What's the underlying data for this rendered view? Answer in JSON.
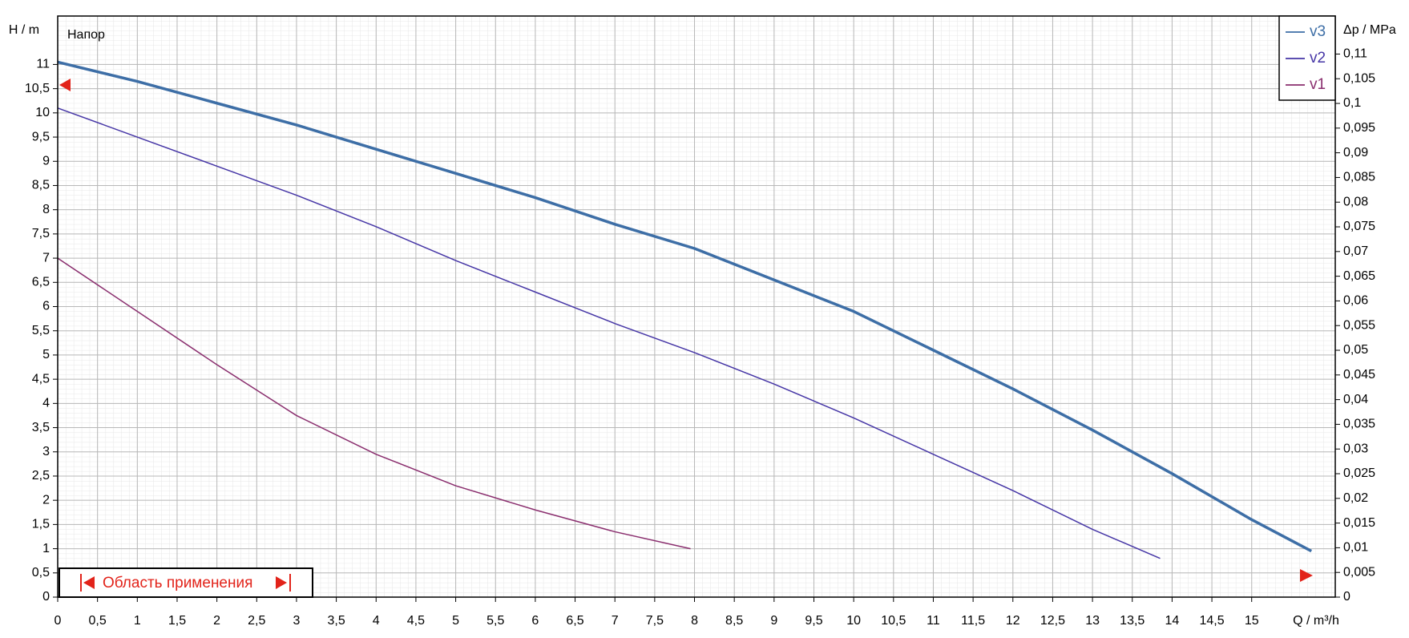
{
  "chart_data": {
    "type": "line",
    "title": "Напор",
    "y_label": "H / m",
    "y2_label": "Δp / MPa",
    "x_label": "Q / m³/h",
    "range_label": "Область применения",
    "legend": "top-right",
    "grid": true,
    "xlim": [
      0,
      16.05
    ],
    "ylim": [
      0,
      12
    ],
    "y2lim": [
      0,
      0.1177
    ],
    "xticks": [
      0,
      {
        "value": 0.5,
        "label": "0,5"
      },
      1,
      {
        "value": 1.5,
        "label": "1,5"
      },
      2,
      {
        "value": 2.5,
        "label": "2,5"
      },
      3,
      {
        "value": 3.5,
        "label": "3,5"
      },
      4,
      {
        "value": 4.5,
        "label": "4,5"
      },
      5,
      {
        "value": 5.5,
        "label": "5,5"
      },
      6,
      {
        "value": 6.5,
        "label": "6,5"
      },
      7,
      {
        "value": 7.5,
        "label": "7,5"
      },
      8,
      {
        "value": 8.5,
        "label": "8,5"
      },
      9,
      {
        "value": 9.5,
        "label": "9,5"
      },
      10,
      {
        "value": 10.5,
        "label": "10,5"
      },
      11,
      {
        "value": 11.5,
        "label": "11,5"
      },
      12,
      {
        "value": 12.5,
        "label": "12,5"
      },
      13,
      {
        "value": 13.5,
        "label": "13,5"
      },
      14,
      {
        "value": 14.5,
        "label": "14,5"
      },
      15
    ],
    "yticks": [
      0,
      {
        "value": 0.5,
        "label": "0,5"
      },
      1,
      {
        "value": 1.5,
        "label": "1,5"
      },
      2,
      {
        "value": 2.5,
        "label": "2,5"
      },
      3,
      {
        "value": 3.5,
        "label": "3,5"
      },
      4,
      {
        "value": 4.5,
        "label": "4,5"
      },
      5,
      {
        "value": 5.5,
        "label": "5,5"
      },
      6,
      {
        "value": 6.5,
        "label": "6,5"
      },
      7,
      {
        "value": 7.5,
        "label": "7,5"
      },
      8,
      {
        "value": 8.5,
        "label": "8,5"
      },
      9,
      {
        "value": 9.5,
        "label": "9,5"
      },
      10,
      {
        "value": 10.5,
        "label": "10,5"
      },
      11
    ],
    "y2ticks": [
      0,
      {
        "value": 0.005,
        "label": "0,005"
      },
      {
        "value": 0.01,
        "label": "0,01"
      },
      {
        "value": 0.015,
        "label": "0,015"
      },
      {
        "value": 0.02,
        "label": "0,02"
      },
      {
        "value": 0.025,
        "label": "0,025"
      },
      {
        "value": 0.03,
        "label": "0,03"
      },
      {
        "value": 0.035,
        "label": "0,035"
      },
      {
        "value": 0.04,
        "label": "0,04"
      },
      {
        "value": 0.045,
        "label": "0,045"
      },
      {
        "value": 0.05,
        "label": "0,05"
      },
      {
        "value": 0.055,
        "label": "0,055"
      },
      {
        "value": 0.06,
        "label": "0,06"
      },
      {
        "value": 0.065,
        "label": "0,065"
      },
      {
        "value": 0.07,
        "label": "0,07"
      },
      {
        "value": 0.075,
        "label": "0,075"
      },
      {
        "value": 0.08,
        "label": "0,08"
      },
      {
        "value": 0.085,
        "label": "0,085"
      },
      {
        "value": 0.09,
        "label": "0,09"
      },
      {
        "value": 0.095,
        "label": "0,095"
      },
      {
        "value": 0.1,
        "label": "0,1"
      },
      {
        "value": 0.105,
        "label": "0,105"
      },
      {
        "value": 0.11,
        "label": "0,11"
      }
    ],
    "series": [
      {
        "name": "v3",
        "color": "#3d6ea6",
        "width": 3.5,
        "x": [
          0,
          1,
          2,
          3,
          4,
          5,
          6,
          7,
          8,
          9,
          10,
          11,
          12,
          13,
          14,
          15,
          15.75
        ],
        "values": [
          11.05,
          10.65,
          10.2,
          9.75,
          9.25,
          8.75,
          8.25,
          7.7,
          7.2,
          6.55,
          5.9,
          5.1,
          4.3,
          3.45,
          2.55,
          1.6,
          0.95
        ]
      },
      {
        "name": "v2",
        "color": "#4636a6",
        "width": 1.5,
        "x": [
          0,
          1,
          2,
          3,
          4,
          5,
          6,
          7,
          8,
          9,
          10,
          11,
          12,
          13,
          13.85
        ],
        "values": [
          10.1,
          9.5,
          8.9,
          8.3,
          7.65,
          6.95,
          6.3,
          5.65,
          5.05,
          4.4,
          3.7,
          2.95,
          2.2,
          1.4,
          0.8
        ]
      },
      {
        "name": "v1",
        "color": "#8a2e6e",
        "width": 1.5,
        "x": [
          0,
          1,
          2,
          3,
          4,
          5,
          6,
          7,
          7.95
        ],
        "values": [
          7.0,
          5.9,
          4.8,
          3.75,
          2.95,
          2.3,
          1.8,
          1.35,
          1.0
        ]
      }
    ]
  }
}
